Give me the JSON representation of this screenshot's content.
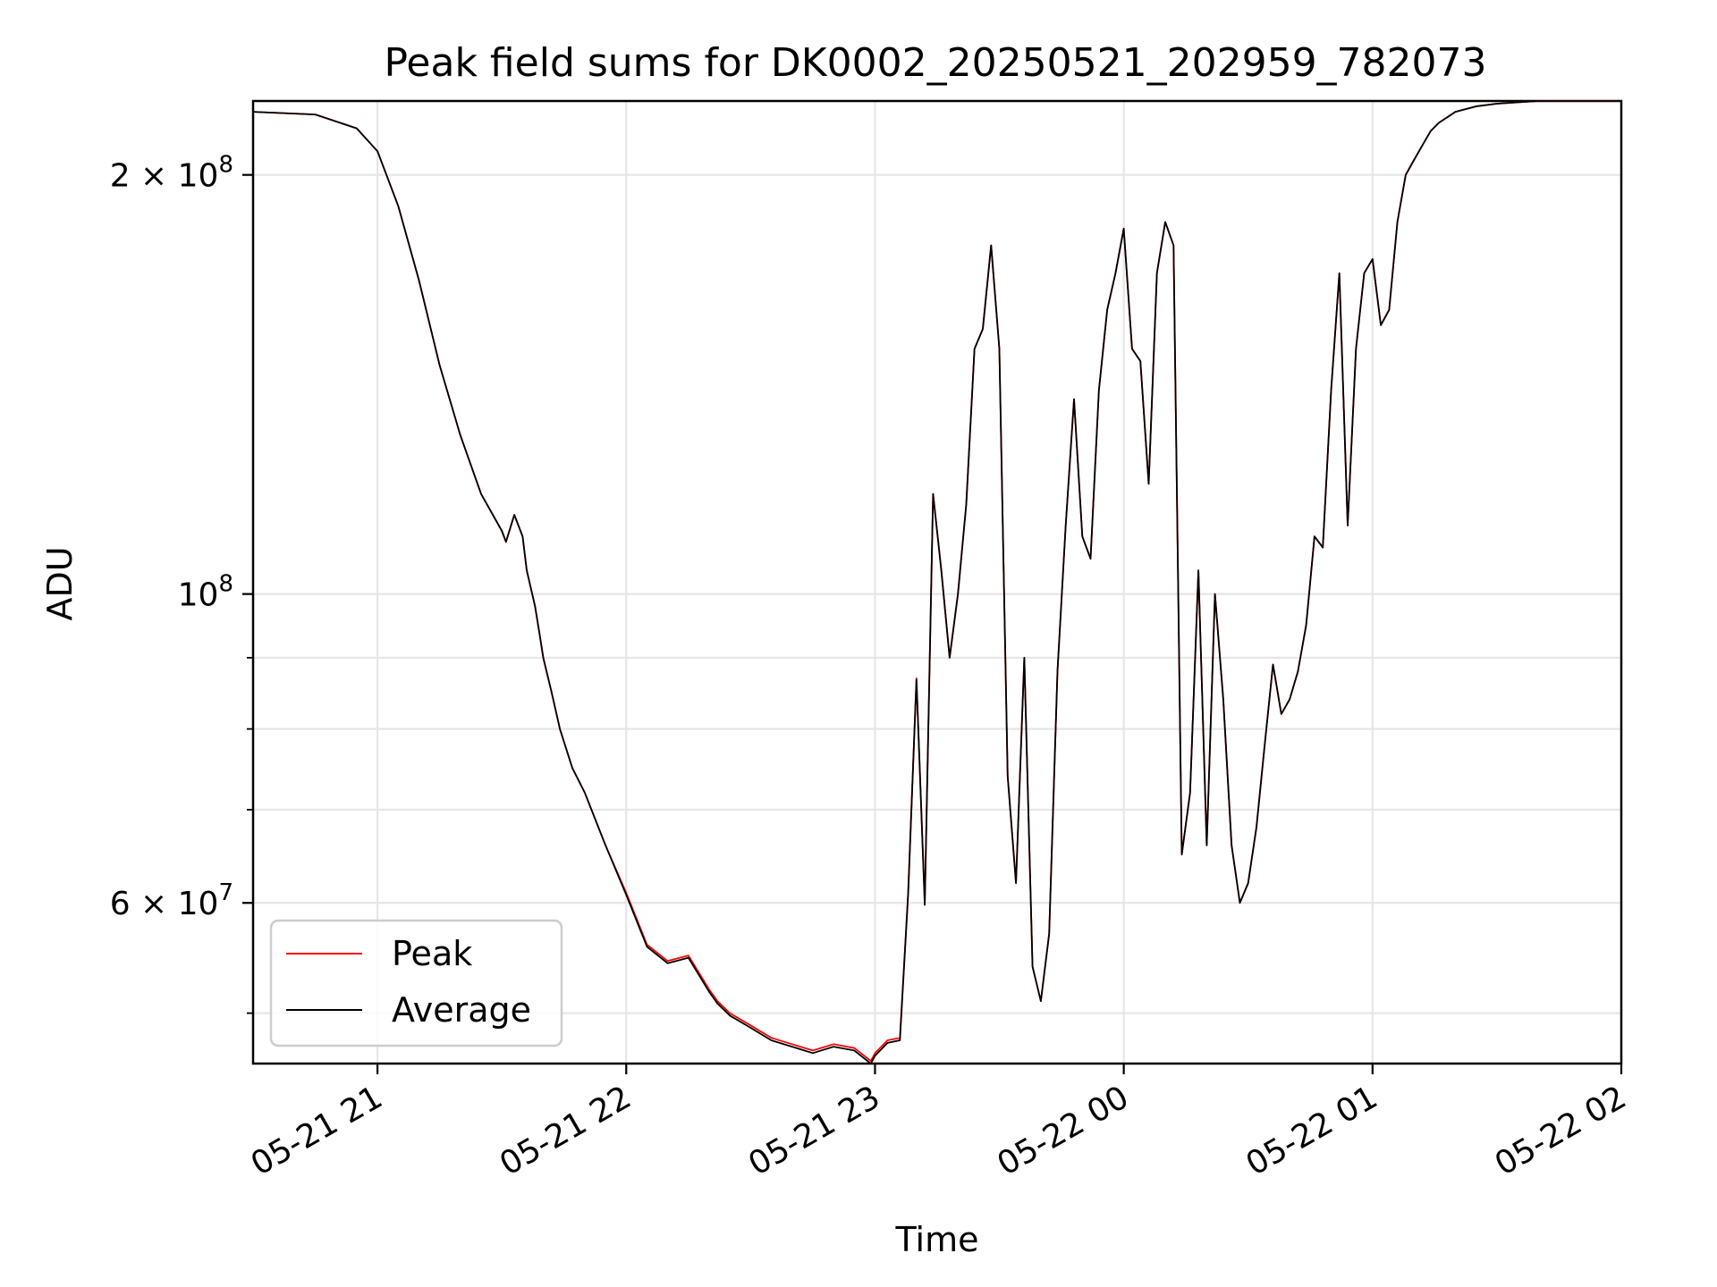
{
  "chart_data": {
    "type": "line",
    "title": "Peak field sums for DK0002_20250521_202959_782073",
    "xlabel": "Time",
    "ylabel": "ADU",
    "x_unit": "datetime",
    "xlim": [
      "2025-05-21 20:30",
      "2025-05-22 02:00"
    ],
    "ylim": [
      46000000,
      226000000
    ],
    "yscale": "log",
    "grid": true,
    "legend_position": "lower-left",
    "x_ticks": [
      {
        "value": "2025-05-21 21:00",
        "label": "05-21 21"
      },
      {
        "value": "2025-05-21 22:00",
        "label": "05-21 22"
      },
      {
        "value": "2025-05-21 23:00",
        "label": "05-21 23"
      },
      {
        "value": "2025-05-22 00:00",
        "label": "05-22 00"
      },
      {
        "value": "2025-05-22 01:00",
        "label": "05-22 01"
      },
      {
        "value": "2025-05-22 02:00",
        "label": "05-22 02"
      }
    ],
    "y_major_ticks": [
      {
        "value": 60000000,
        "mantissa": "6",
        "exp": "7"
      },
      {
        "value": 100000000,
        "mantissa": "",
        "exp": "8"
      },
      {
        "value": 200000000,
        "mantissa": "2",
        "exp": "8"
      }
    ],
    "y_minor_ticks": [
      50000000,
      70000000,
      80000000,
      90000000
    ],
    "colors": {
      "peak": "#ff0000",
      "average": "#000000",
      "grid": "#e6e6e6"
    },
    "x_times": [
      "2025-05-21 20:30",
      "2025-05-21 20:45",
      "2025-05-21 20:55",
      "2025-05-21 21:00",
      "2025-05-21 21:05",
      "2025-05-21 21:10",
      "2025-05-21 21:15",
      "2025-05-21 21:20",
      "2025-05-21 21:25",
      "2025-05-21 21:30",
      "2025-05-21 21:31",
      "2025-05-21 21:33",
      "2025-05-21 21:35",
      "2025-05-21 21:36",
      "2025-05-21 21:38",
      "2025-05-21 21:39",
      "2025-05-21 21:40",
      "2025-05-21 21:42",
      "2025-05-21 21:44",
      "2025-05-21 21:47",
      "2025-05-21 21:50",
      "2025-05-21 21:55",
      "2025-05-21 22:00",
      "2025-05-21 22:05",
      "2025-05-21 22:10",
      "2025-05-21 22:15",
      "2025-05-21 22:20",
      "2025-05-21 22:22",
      "2025-05-21 22:25",
      "2025-05-21 22:30",
      "2025-05-21 22:35",
      "2025-05-21 22:40",
      "2025-05-21 22:45",
      "2025-05-21 22:50",
      "2025-05-21 22:55",
      "2025-05-21 22:59",
      "2025-05-21 23:00",
      "2025-05-21 23:03",
      "2025-05-21 23:06",
      "2025-05-21 23:08",
      "2025-05-21 23:10",
      "2025-05-21 23:12",
      "2025-05-21 23:14",
      "2025-05-21 23:16",
      "2025-05-21 23:18",
      "2025-05-21 23:20",
      "2025-05-21 23:22",
      "2025-05-21 23:24",
      "2025-05-21 23:26",
      "2025-05-21 23:28",
      "2025-05-21 23:30",
      "2025-05-21 23:32",
      "2025-05-21 23:34",
      "2025-05-21 23:36",
      "2025-05-21 23:38",
      "2025-05-21 23:40",
      "2025-05-21 23:42",
      "2025-05-21 23:44",
      "2025-05-21 23:46",
      "2025-05-21 23:48",
      "2025-05-21 23:50",
      "2025-05-21 23:52",
      "2025-05-21 23:54",
      "2025-05-21 23:56",
      "2025-05-21 23:58",
      "2025-05-22 00:00",
      "2025-05-22 00:02",
      "2025-05-22 00:04",
      "2025-05-22 00:06",
      "2025-05-22 00:08",
      "2025-05-22 00:10",
      "2025-05-22 00:12",
      "2025-05-22 00:14",
      "2025-05-22 00:16",
      "2025-05-22 00:18",
      "2025-05-22 00:20",
      "2025-05-22 00:22",
      "2025-05-22 00:24",
      "2025-05-22 00:26",
      "2025-05-22 00:28",
      "2025-05-22 00:30",
      "2025-05-22 00:32",
      "2025-05-22 00:34",
      "2025-05-22 00:36",
      "2025-05-22 00:38",
      "2025-05-22 00:40",
      "2025-05-22 00:42",
      "2025-05-22 00:44",
      "2025-05-22 00:46",
      "2025-05-22 00:48",
      "2025-05-22 00:50",
      "2025-05-22 00:52",
      "2025-05-22 00:54",
      "2025-05-22 00:56",
      "2025-05-22 00:58",
      "2025-05-22 01:00",
      "2025-05-22 01:02",
      "2025-05-22 01:04",
      "2025-05-22 01:06",
      "2025-05-22 01:08",
      "2025-05-22 01:10",
      "2025-05-22 01:12",
      "2025-05-22 01:14",
      "2025-05-22 01:16",
      "2025-05-22 01:18",
      "2025-05-22 01:20",
      "2025-05-22 01:25",
      "2025-05-22 01:30",
      "2025-05-22 01:40",
      "2025-05-22 01:50",
      "2025-05-22 02:00"
    ],
    "series": [
      {
        "name": "Peak",
        "values": [
          222000000,
          221000000,
          216000000,
          208000000,
          190000000,
          168000000,
          146000000,
          130000000,
          118000000,
          111000000,
          109000000,
          114000000,
          110000000,
          104000000,
          98000000,
          94000000,
          90000000,
          85000000,
          80000000,
          75000000,
          72000000,
          66000000,
          61000000,
          56000000,
          54500000,
          55000000,
          52000000,
          51000000,
          50000000,
          49000000,
          48000000,
          47500000,
          47000000,
          47500000,
          47200000,
          46200000,
          46800000,
          47800000,
          48000000,
          61000000,
          87000000,
          60000000,
          118000000,
          104000000,
          90000000,
          100000000,
          116000000,
          150000000,
          155000000,
          178000000,
          150000000,
          74000000,
          62000000,
          90000000,
          54000000,
          51000000,
          57000000,
          88000000,
          112000000,
          138000000,
          110000000,
          106000000,
          140000000,
          160000000,
          170000000,
          183000000,
          150000000,
          147000000,
          120000000,
          170000000,
          185000000,
          178000000,
          65000000,
          72000000,
          104000000,
          66000000,
          100000000,
          84000000,
          66000000,
          60000000,
          62000000,
          68000000,
          78000000,
          89000000,
          82000000,
          84000000,
          88000000,
          95000000,
          110000000,
          108000000,
          140000000,
          170000000,
          112000000,
          150000000,
          170000000,
          174000000,
          156000000,
          160000000,
          185000000,
          200000000,
          205000000,
          210000000,
          215000000,
          218000000,
          220000000,
          222000000,
          224000000,
          225000000,
          226000000,
          226000000,
          226000000
        ]
      },
      {
        "name": "Average",
        "values": [
          222000000,
          221000000,
          216000000,
          208000000,
          190000000,
          168000000,
          146000000,
          130000000,
          118000000,
          111000000,
          109000000,
          114000000,
          110000000,
          104000000,
          98000000,
          94000000,
          90000000,
          85000000,
          80000000,
          75000000,
          72000000,
          66000000,
          60800000,
          55800000,
          54300000,
          54800000,
          51800000,
          50800000,
          49800000,
          48800000,
          47800000,
          47300000,
          46800000,
          47300000,
          47000000,
          46000000,
          46600000,
          47600000,
          47800000,
          60800000,
          86800000,
          59800000,
          118000000,
          104000000,
          90000000,
          100000000,
          116000000,
          150000000,
          155000000,
          178000000,
          150000000,
          74000000,
          62000000,
          90000000,
          54000000,
          51000000,
          57000000,
          88000000,
          112000000,
          138000000,
          110000000,
          106000000,
          140000000,
          160000000,
          170000000,
          183000000,
          150000000,
          147000000,
          120000000,
          170000000,
          185000000,
          178000000,
          65000000,
          72000000,
          104000000,
          66000000,
          100000000,
          84000000,
          66000000,
          60000000,
          62000000,
          68000000,
          78000000,
          89000000,
          82000000,
          84000000,
          88000000,
          95000000,
          110000000,
          108000000,
          140000000,
          170000000,
          112000000,
          150000000,
          170000000,
          174000000,
          156000000,
          160000000,
          185000000,
          200000000,
          205000000,
          210000000,
          215000000,
          218000000,
          220000000,
          222000000,
          224000000,
          225000000,
          226000000,
          226000000,
          226000000
        ]
      }
    ]
  }
}
